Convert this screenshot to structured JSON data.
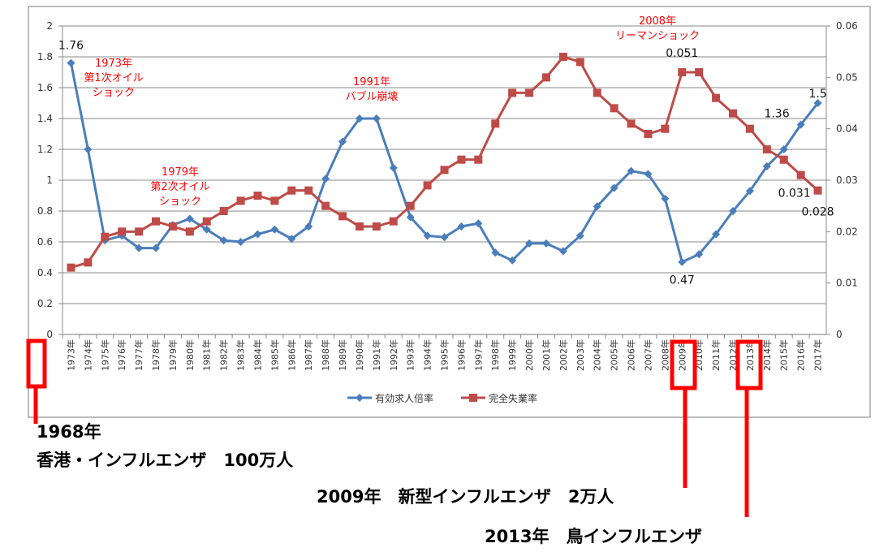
{
  "chart_data": {
    "type": "line",
    "categories": [
      "1973年",
      "1974年",
      "1975年",
      "1976年",
      "1977年",
      "1978年",
      "1979年",
      "1980年",
      "1981年",
      "1982年",
      "1983年",
      "1984年",
      "1985年",
      "1986年",
      "1987年",
      "1988年",
      "1989年",
      "1990年",
      "1991年",
      "1992年",
      "1993年",
      "1994年",
      "1995年",
      "1996年",
      "1997年",
      "1998年",
      "1999年",
      "2000年",
      "2001年",
      "2002年",
      "2003年",
      "2004年",
      "2005年",
      "2006年",
      "2007年",
      "2008年",
      "2009年",
      "2010年",
      "2011年",
      "2012年",
      "2013年",
      "2014年",
      "2015年",
      "2016年",
      "2017年"
    ],
    "series": [
      {
        "name": "有効求人倍率",
        "axis": "left",
        "color": "#4a7ebb",
        "marker": "diamond",
        "values": [
          1.76,
          1.2,
          0.61,
          0.64,
          0.56,
          0.56,
          0.71,
          0.75,
          0.68,
          0.61,
          0.6,
          0.65,
          0.68,
          0.62,
          0.7,
          1.01,
          1.25,
          1.4,
          1.4,
          1.08,
          0.76,
          0.64,
          0.63,
          0.7,
          0.72,
          0.53,
          0.48,
          0.59,
          0.59,
          0.54,
          0.64,
          0.83,
          0.95,
          1.06,
          1.04,
          0.88,
          0.47,
          0.52,
          0.65,
          0.8,
          0.93,
          1.09,
          1.2,
          1.36,
          1.5
        ]
      },
      {
        "name": "完全失業率",
        "axis": "right",
        "color": "#be4b48",
        "marker": "square",
        "values": [
          0.013,
          0.014,
          0.019,
          0.02,
          0.02,
          0.022,
          0.021,
          0.02,
          0.022,
          0.024,
          0.026,
          0.027,
          0.026,
          0.028,
          0.028,
          0.025,
          0.023,
          0.021,
          0.021,
          0.022,
          0.025,
          0.029,
          0.032,
          0.034,
          0.034,
          0.041,
          0.047,
          0.047,
          0.05,
          0.054,
          0.053,
          0.047,
          0.044,
          0.041,
          0.039,
          0.04,
          0.051,
          0.051,
          0.046,
          0.043,
          0.04,
          0.036,
          0.034,
          0.031,
          0.028
        ]
      }
    ],
    "ylim": [
      0,
      2
    ],
    "yticks": [
      "0",
      "0.2",
      "0.4",
      "0.6",
      "0.8",
      "1",
      "1.2",
      "1.4",
      "1.6",
      "1.8",
      "2"
    ],
    "y2lim": [
      0,
      0.06
    ],
    "y2ticks": [
      "0",
      "0.01",
      "0.02",
      "0.03",
      "0.04",
      "0.05",
      "0.06"
    ],
    "grid": true,
    "legend": "bottom",
    "data_labels": [
      {
        "series": 0,
        "index": 0,
        "text": "1.76"
      },
      {
        "series": 1,
        "index": 36,
        "text": "0.051"
      },
      {
        "series": 0,
        "index": 36,
        "text": "0.47"
      },
      {
        "series": 0,
        "index": 43,
        "text": "1.36"
      },
      {
        "series": 0,
        "index": 44,
        "text": "1.5"
      },
      {
        "series": 1,
        "index": 43,
        "text": "0.031"
      },
      {
        "series": 1,
        "index": 44,
        "text": "0.028"
      }
    ],
    "annotations": [
      {
        "lines": [
          "1973年",
          "第1次オイル",
          "ショック"
        ]
      },
      {
        "lines": [
          "1979年",
          "第2次オイル",
          "ショック"
        ]
      },
      {
        "lines": [
          "1991年",
          "バブル崩壊"
        ]
      },
      {
        "lines": [
          "2008年",
          "リーマンショック"
        ]
      }
    ],
    "annotation_color": "#ff0000"
  },
  "notes": {
    "n1968_year": "1968年",
    "n1968_text": "香港・インフルエンザ　100万人",
    "n2009": "2009年　新型インフルエンザ　2万人",
    "n2013": "2013年　鳥インフルエンザ"
  },
  "highlight_color": "#ff0000"
}
